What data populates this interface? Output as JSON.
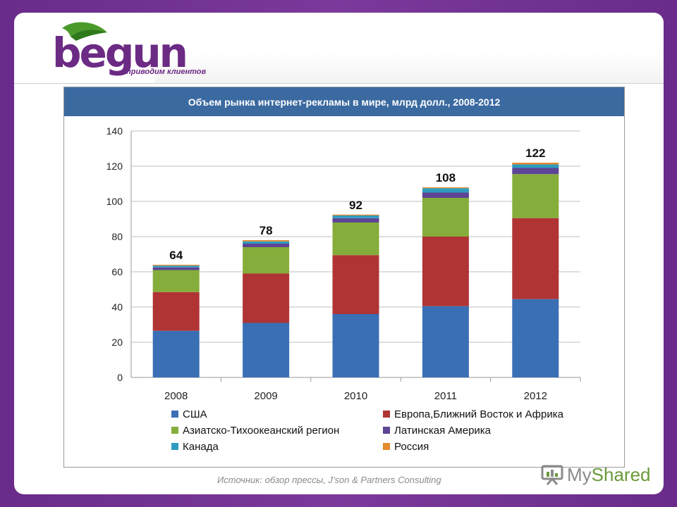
{
  "logo": {
    "text": "begun",
    "tagline": "приводим клиентов"
  },
  "source": "Источник: обзор прессы, J’son & Partners Consulting",
  "watermark": {
    "prefix": "My",
    "suffix": "Shared"
  },
  "colors": {
    "США": "#3a6fb5",
    "Европа": "#b03434",
    "АТР": "#85ad3b",
    "Латинская Америка": "#5e4494",
    "Канада": "#2f9cbf",
    "Россия": "#e68a2e"
  },
  "chart_data": {
    "type": "bar",
    "stacked": true,
    "title": "Объем рынка интернет-рекламы в мире, млрд долл., 2008-2012",
    "categories": [
      "2008",
      "2009",
      "2010",
      "2011",
      "2012"
    ],
    "totals": [
      64,
      78,
      92,
      108,
      122
    ],
    "ylim": [
      0,
      140
    ],
    "yticks": [
      0,
      20,
      40,
      60,
      80,
      100,
      120,
      140
    ],
    "grid": true,
    "legend_position": "bottom",
    "series": [
      {
        "name": "США",
        "color": "#3a6fb5",
        "values": [
          26.5,
          31,
          36,
          40.5,
          44.5
        ]
      },
      {
        "name": "Европа,Ближний Восток и Африка",
        "color": "#b03434",
        "values": [
          22,
          28,
          33.5,
          39.5,
          46
        ]
      },
      {
        "name": "Азиатско-Тихоокеанский регион",
        "color": "#85ad3b",
        "values": [
          12.5,
          15,
          18.5,
          22,
          25
        ]
      },
      {
        "name": "Латинская Америка",
        "color": "#5e4494",
        "values": [
          1.5,
          2,
          2.5,
          3,
          3.5
        ]
      },
      {
        "name": "Канада",
        "color": "#2f9cbf",
        "values": [
          1,
          1.3,
          1.5,
          2.5,
          2
        ]
      },
      {
        "name": "Россия",
        "color": "#e68a2e",
        "values": [
          0.5,
          0.7,
          0.5,
          0.5,
          1
        ]
      }
    ]
  }
}
